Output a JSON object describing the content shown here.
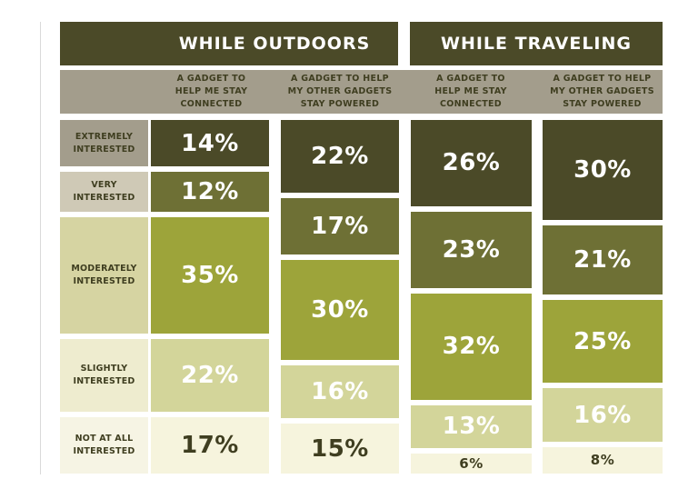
{
  "chart_data": {
    "type": "table",
    "group_headers": [
      "WHILE OUTDOORS",
      "WHILE TRAVELING"
    ],
    "column_headers": [
      "A GADGET TO\nHELP ME STAY\nCONNECTED",
      "A GADGET TO HELP\nMY OTHER GADGETS\nSTAY POWERED",
      "A GADGET TO\nHELP ME STAY\nCONNECTED",
      "A GADGET TO HELP\nMY OTHER GADGETS\nSTAY POWERED"
    ],
    "row_labels": [
      "EXTREMELY\nINTERESTED",
      "VERY\nINTERESTED",
      "MODERATELY\nINTERESTED",
      "SLIGHTLY\nINTERESTED",
      "NOT AT ALL\nINTERESTED"
    ],
    "series": [
      {
        "values": [
          14,
          12,
          35,
          22,
          17
        ],
        "labels": [
          "14%",
          "12%",
          "35%",
          "22%",
          "17%"
        ]
      },
      {
        "values": [
          22,
          17,
          30,
          16,
          15
        ],
        "labels": [
          "22%",
          "17%",
          "30%",
          "16%",
          "15%"
        ]
      },
      {
        "values": [
          26,
          23,
          32,
          13,
          6
        ],
        "labels": [
          "26%",
          "23%",
          "32%",
          "13%",
          "6%"
        ]
      },
      {
        "values": [
          30,
          21,
          25,
          16,
          8
        ],
        "labels": [
          "30%",
          "21%",
          "25%",
          "16%",
          "8%"
        ]
      }
    ],
    "level_colors": [
      "#4b4a28",
      "#6e7035",
      "#9da43a",
      "#d3d59a",
      "#f6f4dd"
    ],
    "level_text_colors": [
      "#ffffff",
      "#ffffff",
      "#ffffff",
      "#ffffff",
      "#3f3e20"
    ],
    "row_label_colors": [
      "#a39d8c",
      "#cfc9b6",
      "#d6d4a2",
      "#eeeccf",
      "#f6f4e4"
    ]
  }
}
